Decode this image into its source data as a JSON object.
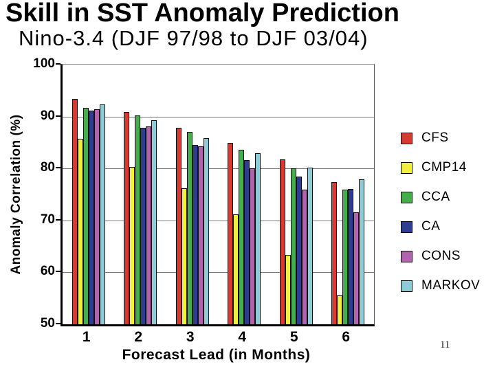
{
  "slide": {
    "title": "Skill in SST Anomaly Prediction",
    "subtitle": "Nino-3.4 (DJF 97/98 to DJF 03/04)",
    "page_number": "11"
  },
  "chart_data": {
    "type": "bar",
    "title": "Skill in SST Anomaly Prediction — Nino-3.4 (DJF 97/98 to DJF 03/04)",
    "xlabel": "Forecast Lead (in Months)",
    "ylabel": "Anomaly Correlation (%)",
    "categories": [
      "1",
      "2",
      "3",
      "4",
      "5",
      "6"
    ],
    "ylim": [
      50,
      100
    ],
    "yticks": [
      50,
      60,
      70,
      80,
      90,
      100
    ],
    "grid": "horizontal-at-60-70-80-90",
    "legend_position": "right",
    "series": [
      {
        "name": "CFS",
        "color": "#d63b33",
        "values": [
          93.4,
          90.9,
          87.8,
          84.9,
          81.7,
          77.4
        ]
      },
      {
        "name": "CMP14",
        "color": "#f2ee3e",
        "values": [
          85.7,
          80.3,
          76.2,
          71.1,
          63.4,
          55.5
        ]
      },
      {
        "name": "CCA",
        "color": "#44ad4c",
        "values": [
          91.7,
          90.2,
          87.1,
          83.6,
          80.0,
          75.9
        ]
      },
      {
        "name": "CA",
        "color": "#2e3d92",
        "values": [
          91.1,
          87.8,
          84.5,
          81.6,
          78.4,
          76.1
        ]
      },
      {
        "name": "CONS",
        "color": "#b163ad",
        "values": [
          91.4,
          88.1,
          84.2,
          80.0,
          75.9,
          71.5
        ]
      },
      {
        "name": "MARKOV",
        "color": "#8fcbd6",
        "values": [
          92.3,
          89.3,
          85.9,
          82.9,
          80.1,
          77.9
        ]
      }
    ]
  }
}
